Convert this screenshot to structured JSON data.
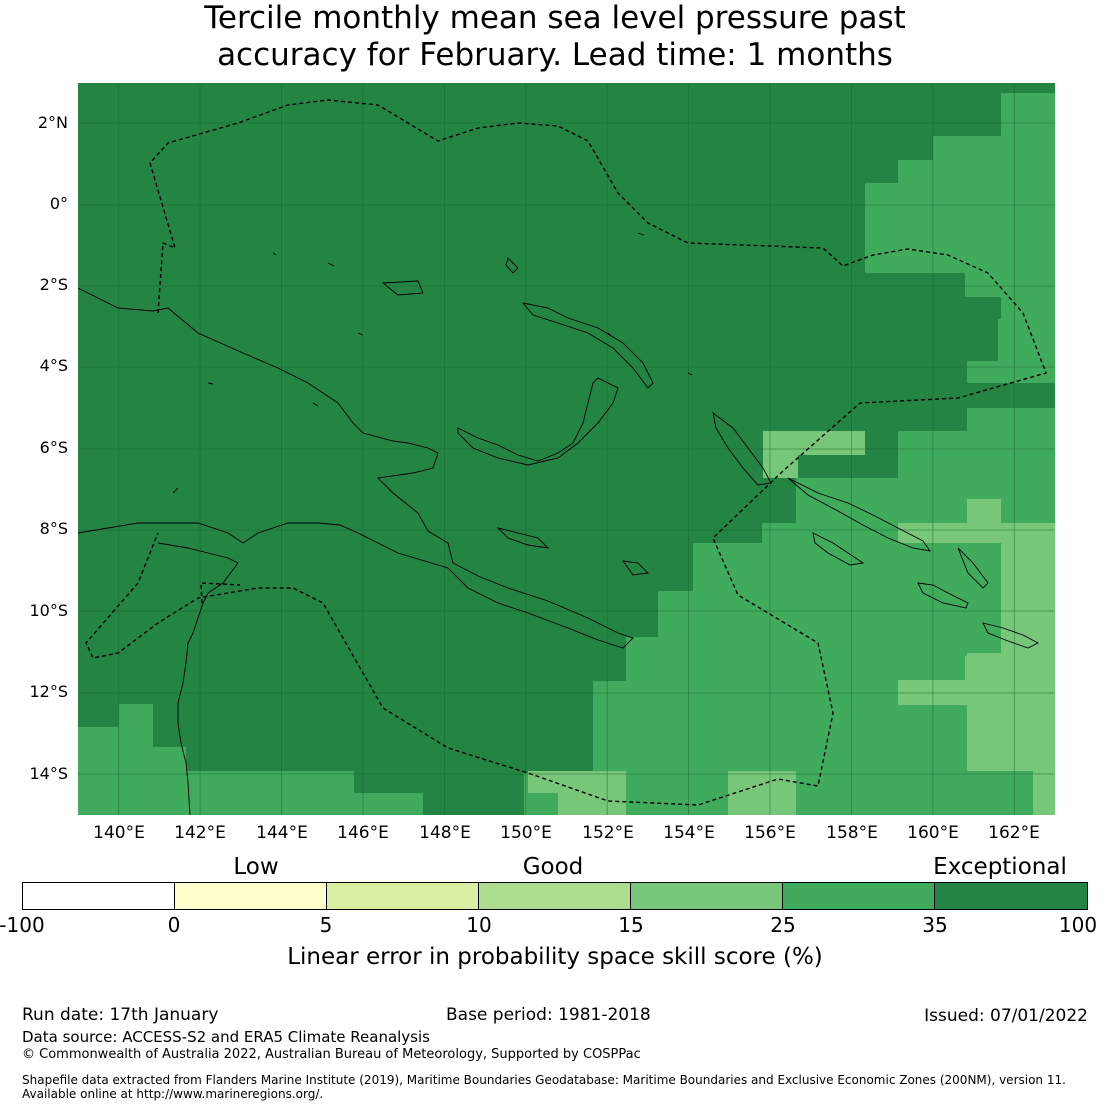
{
  "title_line1": "Tercile monthly mean sea level pressure past",
  "title_line2": "accuracy for February. Lead time: 1 months",
  "map": {
    "region": "Papua New Guinea and Solomon Islands",
    "lon_range": [
      139,
      163
    ],
    "lat_range": [
      -15,
      3
    ],
    "lon_ticks": [
      "140°E",
      "142°E",
      "144°E",
      "146°E",
      "148°E",
      "150°E",
      "152°E",
      "154°E",
      "156°E",
      "158°E",
      "160°E",
      "162°E"
    ],
    "lat_ticks": [
      "2°N",
      "0°",
      "2°S",
      "4°S",
      "6°S",
      "8°S",
      "10°S",
      "12°S",
      "14°S"
    ],
    "colors": {
      "exceptional": "#238443",
      "c25_35": "#41ab5d",
      "c15_25": "#78c679",
      "c10_15": "#addd8e",
      "c5_10": "#d9f0a3",
      "c0_5": "#ffffcc",
      "below0": "#ffffff"
    }
  },
  "colorbar": {
    "categories": [
      "Low",
      "Good",
      "Exceptional"
    ],
    "ticks": [
      "-100",
      "0",
      "5",
      "10",
      "15",
      "25",
      "35",
      "100"
    ],
    "segment_colors": [
      "#ffffff",
      "#ffffcc",
      "#d9f0a3",
      "#addd8e",
      "#78c679",
      "#41ab5d",
      "#238443"
    ],
    "label": "Linear error in probability space skill score (%)"
  },
  "footer": {
    "run_date": "Run date: 17th January",
    "base_period": "Base period: 1981-2018",
    "issued": "Issued: 07/01/2022",
    "data_source": "Data source: ACCESS-S2 and ERA5 Climate Reanalysis",
    "copyright": "© Commonwealth of Australia 2022, Australian Bureau of Meteorology, Supported by COSPPac",
    "shapefile_line1": "Shapefile data extracted from Flanders Marine Institute (2019), Maritime Boundaries Geodatabase: Maritime Boundaries and Exclusive Economic Zones (200NM), version 11.",
    "shapefile_line2": "Available online at http://www.marineregions.org/."
  }
}
